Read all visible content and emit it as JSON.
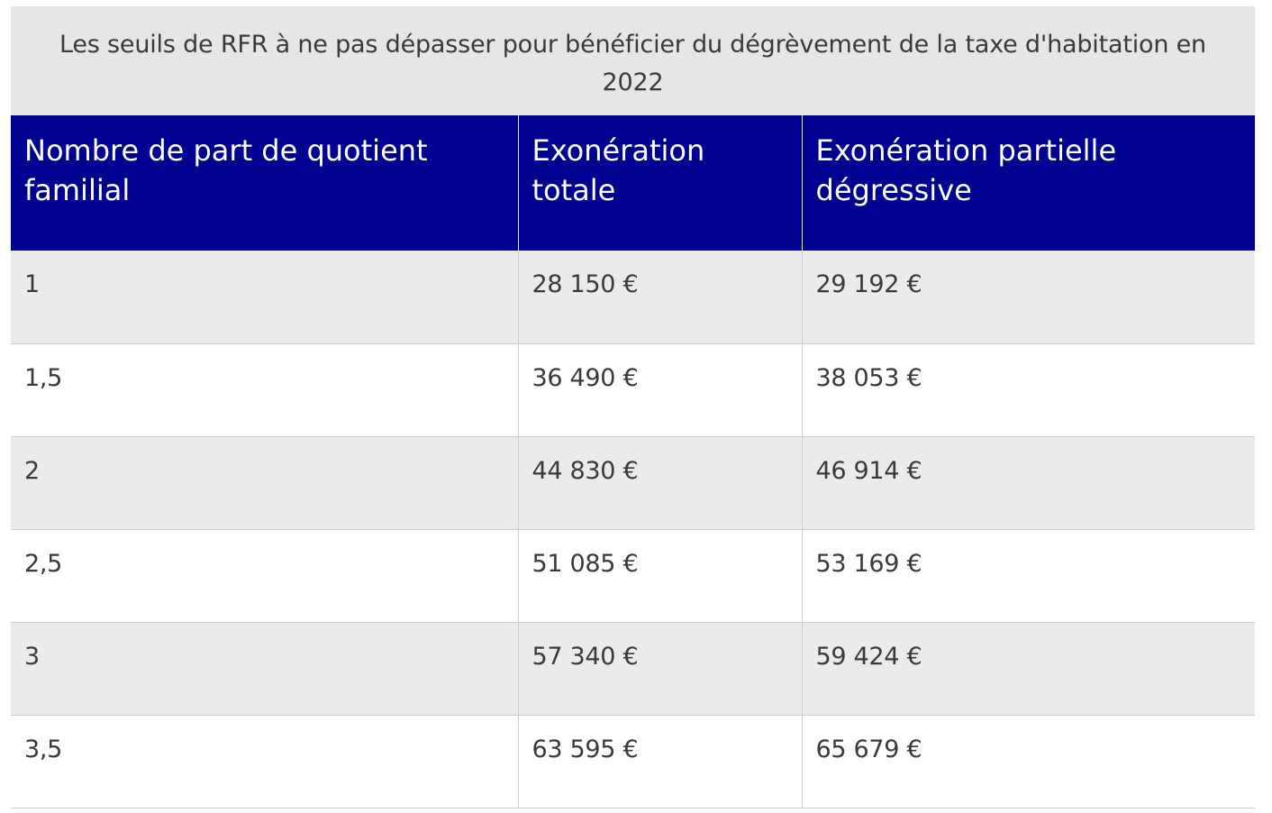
{
  "table": {
    "caption": "Les seuils de RFR à ne pas dépasser pour bénéficier du dégrèvement de la taxe d'habitation en 2022",
    "headers": [
      "Nombre de part de quotient familial",
      "Exonération totale",
      "Exonération partielle dégressive"
    ],
    "rows": [
      [
        "1",
        "28 150 €",
        "29 192 €"
      ],
      [
        "1,5",
        "36 490 €",
        "38 053 €"
      ],
      [
        "2",
        "44 830 €",
        "46 914 €"
      ],
      [
        "2,5",
        "51 085 €",
        "53 169 €"
      ],
      [
        "3",
        "57 340 €",
        "59 424 €"
      ],
      [
        "3,5",
        "63 595 €",
        "65 679 €"
      ]
    ]
  },
  "colors": {
    "header_bg": "#000091",
    "header_text": "#ffffff",
    "caption_bg": "#e6e6e6",
    "row_alt_bg": "#ebebeb",
    "text": "#3a3a3a",
    "border": "#cecece"
  }
}
